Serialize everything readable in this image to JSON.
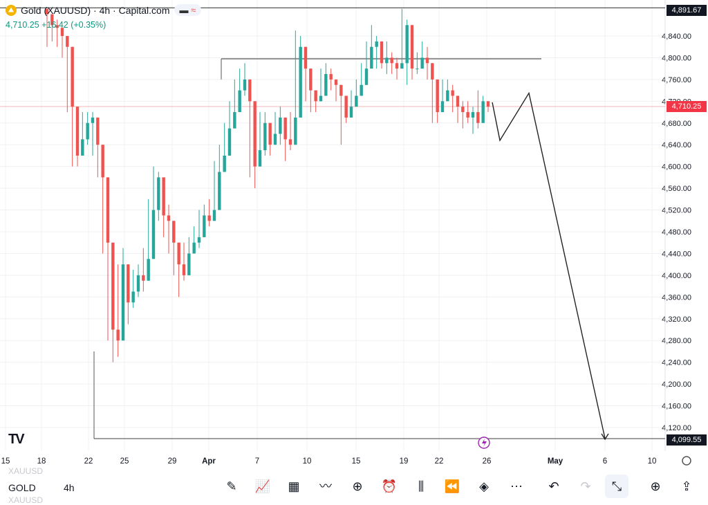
{
  "header": {
    "title": "Gold (XAUUSD) · 4h · Capital.com",
    "price": "4,710.25",
    "change": "+16.42 (+0.35%)"
  },
  "toolbar": {
    "symbol": "GOLD",
    "timeframe": "4h",
    "ghost_top": "XAUUSD",
    "ghost_bottom": "XAUUSD",
    "icons": [
      "pencil-icon",
      "indicators-icon",
      "layouts-icon",
      "compare-icon",
      "add-icon",
      "alert-icon",
      "candles-icon",
      "replay-icon",
      "layers-icon",
      "more-icon",
      "undo-icon",
      "redo-icon",
      "collapse-icon",
      "add-indicator-icon",
      "share-icon"
    ]
  },
  "colors": {
    "up": "#26a69a",
    "down": "#ef5350",
    "grid": "#eef0f3",
    "price_line": "#f2b8b8",
    "price_tag": "#f23645",
    "level_tag": "#131722"
  },
  "chart_data": {
    "type": "candlestick",
    "title": "Gold (XAUUSD)",
    "ylim": [
      4090,
      4900
    ],
    "y_ticks": [
      4120,
      4160,
      4200,
      4240,
      4280,
      4320,
      4360,
      4400,
      4440,
      4480,
      4520,
      4560,
      4600,
      4640,
      4680,
      4720,
      4760,
      4800,
      4840
    ],
    "y_tick_labels": [
      "4,120.00",
      "4,160.00",
      "4,200.00",
      "4,240.00",
      "4,280.00",
      "4,320.00",
      "4,360.00",
      "4,400.00",
      "4,440.00",
      "4,480.00",
      "4,520.00",
      "4,560.00",
      "4,600.00",
      "4,640.00",
      "4,680.00",
      "4,720.00",
      "4,760.00",
      "4,800.00",
      "4,840.00"
    ],
    "x_labels": [
      "15",
      "18",
      "22",
      "25",
      "29",
      "Apr",
      "7",
      "10",
      "15",
      "19",
      "22",
      "26",
      "May",
      "6",
      "10"
    ],
    "current_price": 4710.25,
    "current_price_label": "4,710.25",
    "levels": [
      {
        "value": 4891.67,
        "label": "4,891.67"
      },
      {
        "value": 4099.55,
        "label": "4,099.55"
      },
      {
        "value": 4798
      }
    ],
    "projection": [
      [
        0,
        4718
      ],
      [
        1,
        4648
      ],
      [
        2,
        4735
      ],
      [
        3,
        4100
      ]
    ],
    "path": [
      [
        4880,
        4890,
        4820
      ],
      [
        4860,
        4875,
        4830
      ],
      [
        4855,
        4870,
        4820
      ],
      [
        4840,
        4850,
        4800
      ],
      [
        4820,
        4830,
        4700
      ],
      [
        4710,
        4720,
        4600
      ],
      [
        4620,
        4680,
        4600
      ],
      [
        4650,
        4700,
        4630
      ],
      [
        4680,
        4700,
        4640
      ],
      [
        4690,
        4700,
        4620
      ],
      [
        4640,
        4660,
        4580
      ],
      [
        4580,
        4590,
        4440
      ],
      [
        4460,
        4480,
        4280
      ],
      [
        4300,
        4320,
        4240
      ],
      [
        4280,
        4420,
        4250
      ],
      [
        4420,
        4450,
        4340
      ],
      [
        4350,
        4400,
        4310
      ],
      [
        4370,
        4410,
        4340
      ],
      [
        4400,
        4420,
        4360
      ],
      [
        4390,
        4450,
        4370
      ],
      [
        4430,
        4540,
        4410
      ],
      [
        4520,
        4600,
        4500
      ],
      [
        4580,
        4590,
        4500
      ],
      [
        4510,
        4540,
        4470
      ],
      [
        4500,
        4530,
        4440
      ],
      [
        4460,
        4480,
        4400
      ],
      [
        4420,
        4440,
        4360
      ],
      [
        4400,
        4460,
        4390
      ],
      [
        4440,
        4470,
        4420
      ],
      [
        4460,
        4490,
        4440
      ],
      [
        4470,
        4520,
        4450
      ],
      [
        4510,
        4530,
        4480
      ],
      [
        4500,
        4540,
        4490
      ],
      [
        4520,
        4610,
        4500
      ],
      [
        4590,
        4640,
        4570
      ],
      [
        4620,
        4680,
        4600
      ],
      [
        4670,
        4720,
        4650
      ],
      [
        4700,
        4760,
        4690
      ],
      [
        4740,
        4780,
        4720
      ],
      [
        4760,
        4790,
        4730
      ],
      [
        4720,
        4740,
        4580
      ],
      [
        4600,
        4640,
        4560
      ],
      [
        4630,
        4700,
        4620
      ],
      [
        4680,
        4700,
        4620
      ],
      [
        4640,
        4680,
        4620
      ],
      [
        4660,
        4700,
        4640
      ],
      [
        4690,
        4710,
        4640
      ],
      [
        4650,
        4670,
        4610
      ],
      [
        4640,
        4700,
        4630
      ],
      [
        4690,
        4850,
        4680
      ],
      [
        4820,
        4840,
        4750
      ],
      [
        4780,
        4790,
        4720
      ],
      [
        4740,
        4760,
        4700
      ],
      [
        4720,
        4740,
        4700
      ],
      [
        4730,
        4780,
        4720
      ],
      [
        4770,
        4790,
        4740
      ],
      [
        4760,
        4780,
        4740
      ],
      [
        4750,
        4760,
        4720
      ],
      [
        4730,
        4740,
        4640
      ],
      [
        4690,
        4720,
        4680
      ],
      [
        4710,
        4740,
        4700
      ],
      [
        4730,
        4760,
        4720
      ],
      [
        4750,
        4790,
        4740
      ],
      [
        4780,
        4830,
        4770
      ],
      [
        4820,
        4860,
        4800
      ],
      [
        4830,
        4840,
        4780
      ],
      [
        4790,
        4830,
        4780
      ],
      [
        4800,
        4830,
        4770
      ],
      [
        4790,
        4810,
        4770
      ],
      [
        4780,
        4800,
        4760
      ],
      [
        4790,
        4890,
        4780
      ],
      [
        4860,
        4870,
        4750
      ],
      [
        4780,
        4800,
        4760
      ],
      [
        4780,
        4810,
        4770
      ],
      [
        4800,
        4830,
        4790
      ],
      [
        4790,
        4820,
        4760
      ],
      [
        4760,
        4780,
        4680
      ],
      [
        4700,
        4730,
        4680
      ],
      [
        4720,
        4760,
        4710
      ],
      [
        4740,
        4760,
        4720
      ],
      [
        4730,
        4750,
        4700
      ],
      [
        4710,
        4730,
        4680
      ],
      [
        4700,
        4720,
        4670
      ],
      [
        4690,
        4720,
        4680
      ],
      [
        4700,
        4710,
        4660
      ],
      [
        4680,
        4740,
        4670
      ],
      [
        4720,
        4730,
        4700
      ],
      [
        4710,
        4715,
        4700
      ]
    ]
  }
}
